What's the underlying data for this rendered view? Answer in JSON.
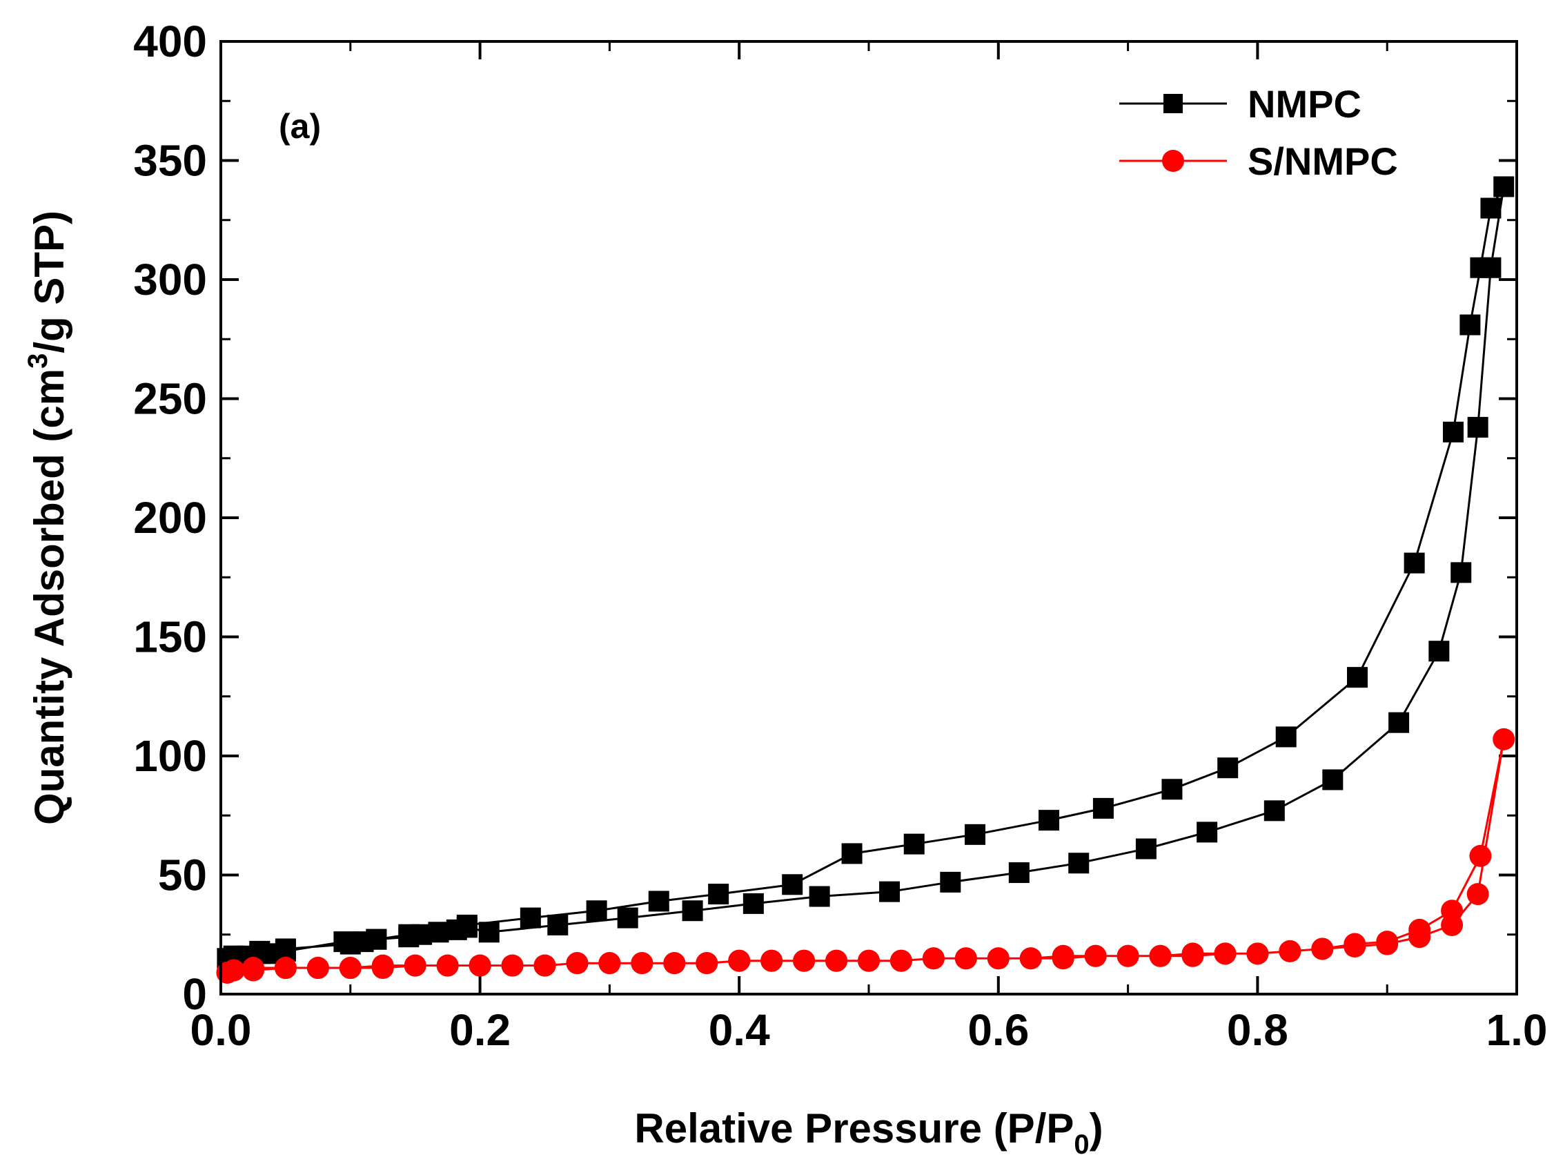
{
  "chart_data": {
    "type": "line",
    "panel_label": "(a)",
    "xlabel": {
      "main": "Relative Pressure (P/P",
      "sub": "0",
      "end": ")"
    },
    "ylabel": {
      "main": "Quantity Adsorbed (cm",
      "sup": "3",
      "end": "/g STP)"
    },
    "xlim": [
      0.0,
      1.0
    ],
    "ylim": [
      0,
      400
    ],
    "x_ticks": [
      "0.0",
      "0.2",
      "0.4",
      "0.6",
      "0.8",
      "1.0"
    ],
    "y_ticks": [
      "0",
      "50",
      "100",
      "150",
      "200",
      "250",
      "300",
      "350",
      "400"
    ],
    "legend_position": "top-right",
    "series": [
      {
        "name": "NMPC",
        "color": "#000000",
        "marker": "square",
        "x": [
          0.005,
          0.01,
          0.02,
          0.03,
          0.04,
          0.05,
          0.095,
          0.11,
          0.12,
          0.145,
          0.155,
          0.168,
          0.182,
          0.19,
          0.207,
          0.26,
          0.314,
          0.364,
          0.411,
          0.462,
          0.516,
          0.563,
          0.616,
          0.662,
          0.714,
          0.761,
          0.813,
          0.858,
          0.909,
          0.94,
          0.957,
          0.97,
          0.98,
          0.99,
          0.98,
          0.972,
          0.964,
          0.951,
          0.921,
          0.877,
          0.822,
          0.777,
          0.734,
          0.681,
          0.639,
          0.582,
          0.535,
          0.487,
          0.441,
          0.384,
          0.338,
          0.29,
          0.239,
          0.19,
          0.145,
          0.12,
          0.1,
          0.05,
          0.03,
          0.01
        ],
        "y": [
          15,
          16,
          16,
          17,
          17,
          18,
          22,
          22,
          23,
          24,
          25,
          26,
          27,
          28,
          26,
          29,
          32,
          35,
          38,
          41,
          43,
          47,
          51,
          55,
          61,
          68,
          77,
          90,
          114,
          144,
          177,
          238,
          305,
          339,
          330,
          305,
          281,
          236,
          181,
          133,
          108,
          95,
          86,
          78,
          73,
          67,
          63,
          59,
          46,
          42,
          39,
          35,
          32,
          29,
          25,
          23,
          21,
          19,
          18,
          16
        ]
      },
      {
        "name": "S/NMPC",
        "color": "#ff0000",
        "marker": "circle",
        "x": [
          0.005,
          0.01,
          0.025,
          0.05,
          0.075,
          0.1,
          0.125,
          0.15,
          0.175,
          0.2,
          0.225,
          0.25,
          0.275,
          0.3,
          0.325,
          0.35,
          0.375,
          0.4,
          0.425,
          0.45,
          0.475,
          0.5,
          0.525,
          0.55,
          0.575,
          0.6,
          0.625,
          0.65,
          0.675,
          0.7,
          0.725,
          0.75,
          0.775,
          0.8,
          0.825,
          0.85,
          0.875,
          0.9,
          0.925,
          0.95,
          0.97,
          0.99,
          0.972,
          0.95,
          0.925,
          0.9,
          0.875,
          0.85,
          0.825,
          0.8,
          0.775,
          0.75,
          0.725,
          0.7,
          0.675,
          0.65,
          0.625,
          0.6,
          0.575,
          0.55,
          0.525,
          0.5,
          0.475,
          0.45,
          0.425,
          0.4,
          0.375,
          0.35,
          0.325,
          0.3,
          0.275,
          0.25,
          0.225,
          0.2,
          0.175,
          0.15,
          0.125,
          0.1,
          0.075,
          0.05,
          0.025,
          0.01
        ],
        "y": [
          9,
          10,
          11,
          11,
          11,
          11,
          12,
          12,
          12,
          12,
          12,
          12,
          13,
          13,
          13,
          13,
          13,
          14,
          14,
          14,
          14,
          14,
          14,
          15,
          15,
          15,
          15,
          15,
          16,
          16,
          16,
          16,
          17,
          17,
          18,
          19,
          20,
          21,
          24,
          29,
          42,
          107,
          58,
          35,
          27,
          22,
          21,
          19,
          18,
          17,
          17,
          17,
          16,
          16,
          16,
          16,
          15,
          15,
          15,
          15,
          14,
          14,
          14,
          14,
          14,
          14,
          13,
          13,
          13,
          13,
          13,
          12,
          12,
          12,
          12,
          12,
          11,
          11,
          11,
          11,
          10,
          10
        ]
      }
    ]
  }
}
